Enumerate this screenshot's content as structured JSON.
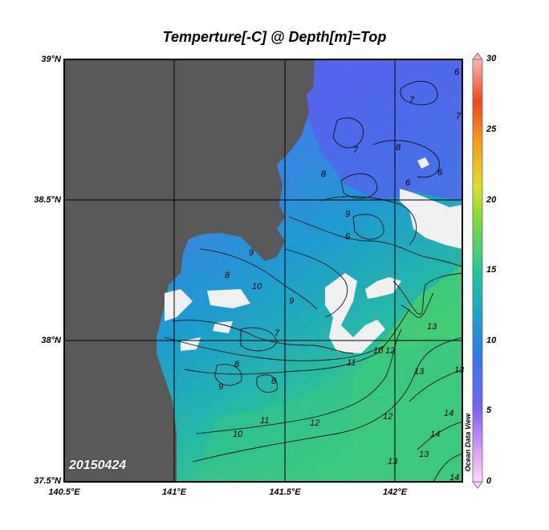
{
  "title": "Temperture[-C] @ Depth[m]=Top",
  "date_label": "20150424",
  "software_label": "Ocean Data View",
  "lat_ticks": [
    "39°N",
    "38.5°N",
    "38°N",
    "37.5°N"
  ],
  "lon_ticks": [
    "140.5°E",
    "141°E",
    "141.5°E",
    "142°E"
  ],
  "colorbar": {
    "ticks": [
      "30",
      "25",
      "20",
      "15",
      "10",
      "5",
      "0"
    ],
    "range": [
      0,
      30
    ]
  },
  "colors": {
    "land": "#595959",
    "no_data": "#f0f0f0",
    "cold": "#5a66f0",
    "mid": "#1e8fd8",
    "warm": "#3ccf7a"
  },
  "contour_labels": [
    "6",
    "7",
    "7",
    "6",
    "8",
    "8",
    "7",
    "6",
    "6",
    "9",
    "8",
    "9",
    "10",
    "9",
    "7",
    "8",
    "9",
    "8",
    "10",
    "11",
    "12",
    "10",
    "12",
    "11",
    "13",
    "13",
    "13",
    "14",
    "14",
    "12",
    "13",
    "13",
    "14"
  ],
  "chart_data": {
    "type": "heatmap",
    "title": "Temperture[-C] @ Depth[m]=Top",
    "variable": "Temperture[-C]",
    "depth": "Top",
    "xlim": [
      140.5,
      142.3
    ],
    "ylim": [
      37.5,
      39.0
    ],
    "colorbar_range": [
      0,
      30
    ],
    "contour_levels": [
      6,
      7,
      8,
      9,
      10,
      11,
      12,
      13,
      14
    ]
  }
}
